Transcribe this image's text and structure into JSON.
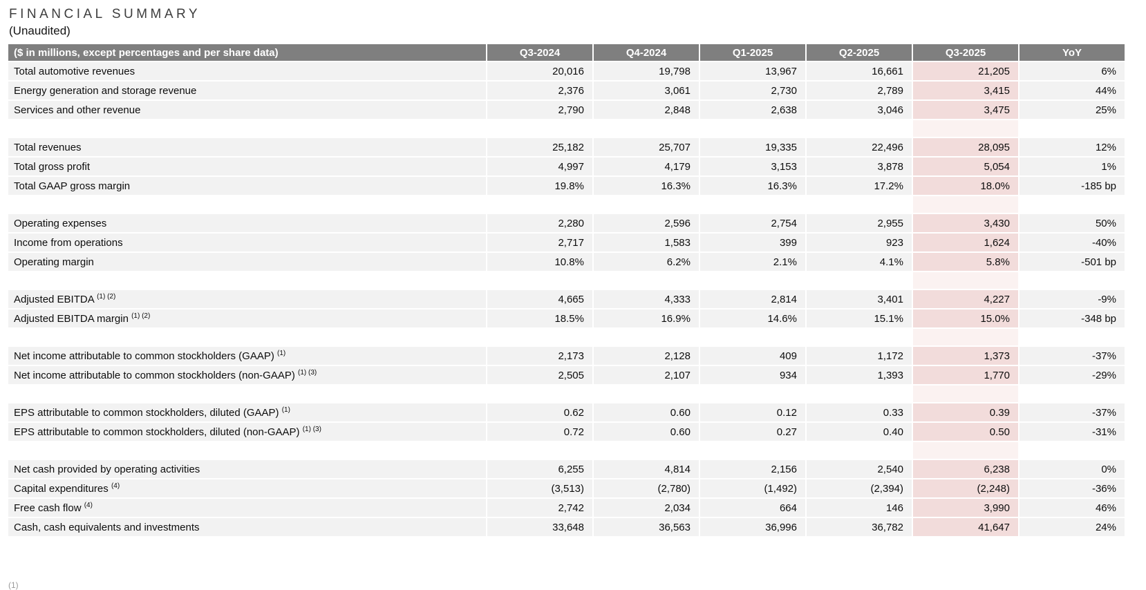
{
  "page": {
    "title": "FINANCIAL SUMMARY",
    "subtitle": "(Unaudited)",
    "footnote_fragment": "(1)"
  },
  "colors": {
    "header_bg": "#7f7f7f",
    "header_text": "#ffffff",
    "row_bg": "#f2f2f2",
    "highlight_bg": "#f2dcdb",
    "highlight_blank_bg": "#fbf2f1",
    "page_bg": "#ffffff"
  },
  "table": {
    "header": {
      "label": "($ in millions, except percentages and per share data)",
      "columns": [
        "Q3-2024",
        "Q4-2024",
        "Q1-2025",
        "Q2-2025",
        "Q3-2025",
        "YoY"
      ]
    },
    "highlight_column": "Q3-2025",
    "highlight_column_index": 4,
    "rows": [
      {
        "label": "Total automotive revenues",
        "values": [
          "20,016",
          "19,798",
          "13,967",
          "16,661",
          "21,205",
          "6%"
        ]
      },
      {
        "label": "Energy generation and storage revenue",
        "values": [
          "2,376",
          "3,061",
          "2,730",
          "2,789",
          "3,415",
          "44%"
        ]
      },
      {
        "label": "Services and other revenue",
        "values": [
          "2,790",
          "2,848",
          "2,638",
          "3,046",
          "3,475",
          "25%"
        ]
      },
      {
        "spacer": true
      },
      {
        "label": "Total revenues",
        "values": [
          "25,182",
          "25,707",
          "19,335",
          "22,496",
          "28,095",
          "12%"
        ]
      },
      {
        "label": "Total gross profit",
        "values": [
          "4,997",
          "4,179",
          "3,153",
          "3,878",
          "5,054",
          "1%"
        ]
      },
      {
        "label": "Total GAAP gross margin",
        "values": [
          "19.8%",
          "16.3%",
          "16.3%",
          "17.2%",
          "18.0%",
          "-185 bp"
        ]
      },
      {
        "spacer": true
      },
      {
        "label": "Operating expenses",
        "values": [
          "2,280",
          "2,596",
          "2,754",
          "2,955",
          "3,430",
          "50%"
        ]
      },
      {
        "label": "Income from operations",
        "values": [
          "2,717",
          "1,583",
          "399",
          "923",
          "1,624",
          "-40%"
        ]
      },
      {
        "label": "Operating margin",
        "values": [
          "10.8%",
          "6.2%",
          "2.1%",
          "4.1%",
          "5.8%",
          "-501 bp"
        ]
      },
      {
        "spacer": true
      },
      {
        "label": "Adjusted EBITDA",
        "sup": "(1) (2)",
        "values": [
          "4,665",
          "4,333",
          "2,814",
          "3,401",
          "4,227",
          "-9%"
        ]
      },
      {
        "label": "Adjusted EBITDA margin",
        "sup": "(1) (2)",
        "values": [
          "18.5%",
          "16.9%",
          "14.6%",
          "15.1%",
          "15.0%",
          "-348 bp"
        ]
      },
      {
        "spacer": true
      },
      {
        "label": "Net income attributable to common stockholders (GAAP)",
        "sup": "(1)",
        "values": [
          "2,173",
          "2,128",
          "409",
          "1,172",
          "1,373",
          "-37%"
        ]
      },
      {
        "label": "Net income attributable to common stockholders (non-GAAP)",
        "sup": "(1) (3)",
        "values": [
          "2,505",
          "2,107",
          "934",
          "1,393",
          "1,770",
          "-29%"
        ]
      },
      {
        "spacer": true
      },
      {
        "label": "EPS attributable to common stockholders, diluted (GAAP)",
        "sup": "(1)",
        "values": [
          "0.62",
          "0.60",
          "0.12",
          "0.33",
          "0.39",
          "-37%"
        ]
      },
      {
        "label": "EPS attributable to common stockholders, diluted (non-GAAP)",
        "sup": "(1) (3)",
        "values": [
          "0.72",
          "0.60",
          "0.27",
          "0.40",
          "0.50",
          "-31%"
        ]
      },
      {
        "spacer": true
      },
      {
        "label": "Net cash provided by operating activities",
        "values": [
          "6,255",
          "4,814",
          "2,156",
          "2,540",
          "6,238",
          "0%"
        ]
      },
      {
        "label": "Capital expenditures",
        "sup": "(4)",
        "values": [
          "(3,513)",
          "(2,780)",
          "(1,492)",
          "(2,394)",
          "(2,248)",
          "-36%"
        ]
      },
      {
        "label": "Free cash flow",
        "sup": "(4)",
        "values": [
          "2,742",
          "2,034",
          "664",
          "146",
          "3,990",
          "46%"
        ]
      },
      {
        "label": "Cash, cash equivalents and investments",
        "values": [
          "33,648",
          "36,563",
          "36,996",
          "36,782",
          "41,647",
          "24%"
        ]
      }
    ]
  }
}
